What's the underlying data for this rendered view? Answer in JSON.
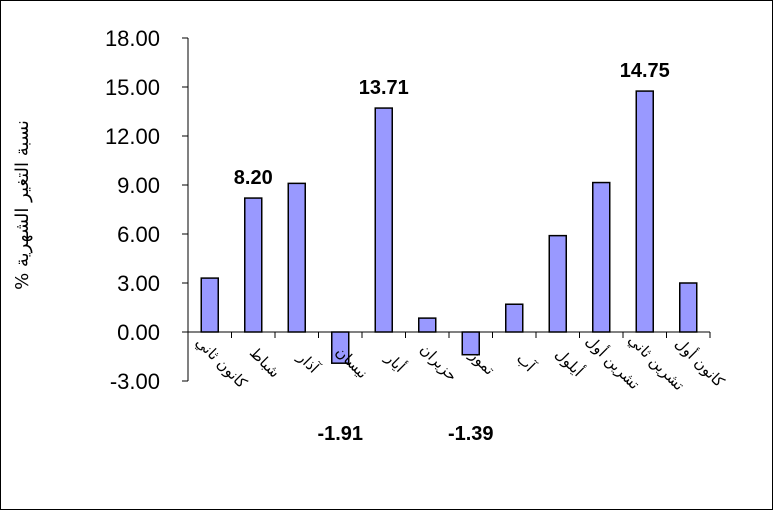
{
  "chart_data": {
    "type": "bar",
    "categories": [
      "كانون ثاني",
      "شباط",
      "آذار",
      "نيسان",
      "أيار",
      "حزيران",
      "تموز",
      "آب",
      "أيلول",
      "تشرين أول",
      "تشرين ثاني",
      "كانون أول"
    ],
    "values": [
      3.3,
      8.2,
      9.1,
      -1.91,
      13.71,
      0.85,
      -1.39,
      1.7,
      5.9,
      9.15,
      14.75,
      3.0
    ],
    "data_labels": [
      {
        "index": 1,
        "text": "8.20"
      },
      {
        "index": 3,
        "text": "-1.91"
      },
      {
        "index": 4,
        "text": "13.71"
      },
      {
        "index": 6,
        "text": "-1.39"
      },
      {
        "index": 10,
        "text": "14.75"
      }
    ],
    "yticks": [
      "18.00",
      "15.00",
      "12.00",
      "9.00",
      "6.00",
      "3.00",
      "0.00",
      "-3.00"
    ],
    "ylim": [
      -3,
      18
    ],
    "ylabel": "نسبة التغير الشهرية %",
    "xlabel": "",
    "title": "",
    "bar_color": "#9999FF",
    "grid": false,
    "legend": "none"
  }
}
